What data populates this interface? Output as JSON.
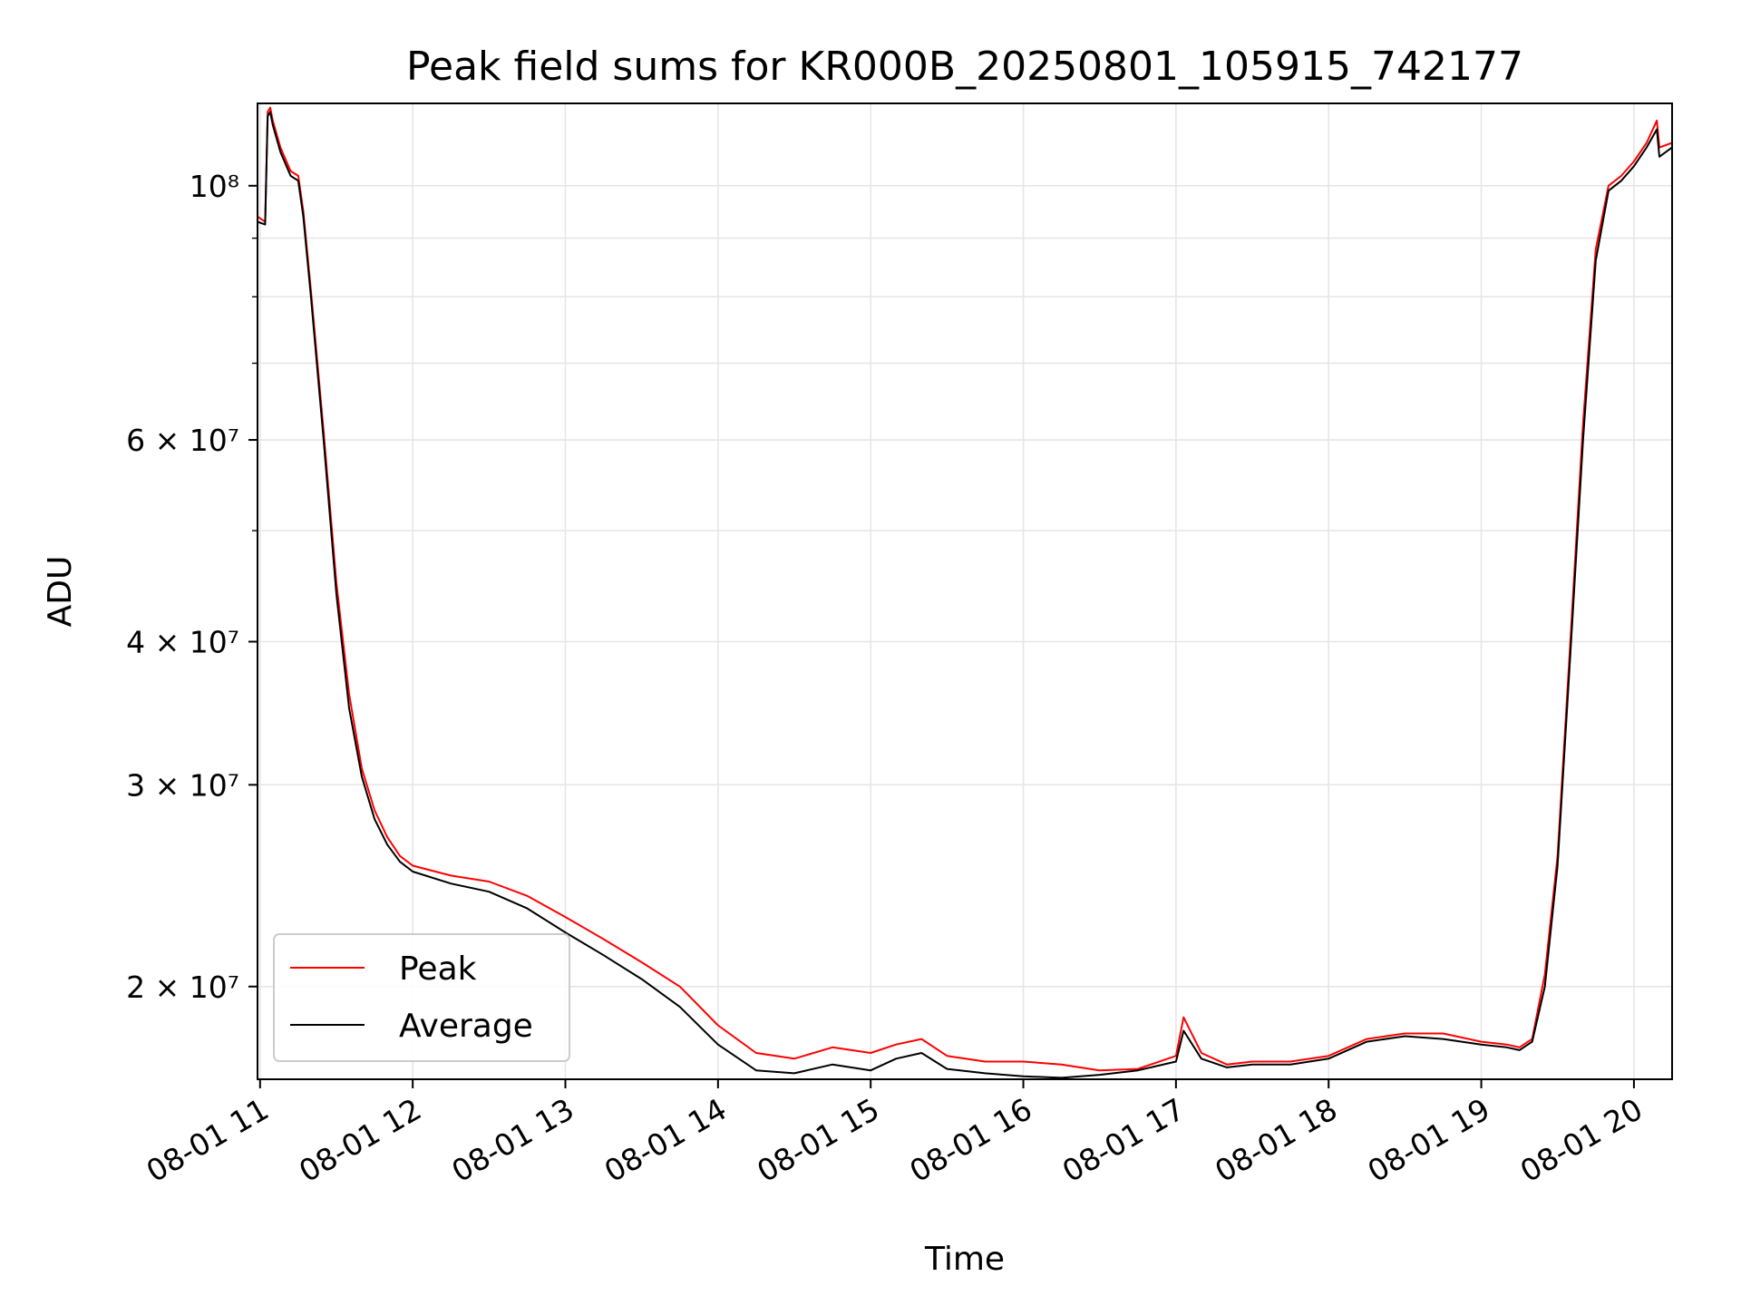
{
  "chart_data": {
    "type": "line",
    "title": "Peak field sums for KR000B_20250801_105915_742177",
    "xlabel": "Time",
    "ylabel": "ADU",
    "y_scale": "log",
    "ylim": [
      16600000,
      118000000
    ],
    "xlim": [
      "08-01 10:59",
      "08-01 20:15"
    ],
    "grid": true,
    "legend_position": "lower left",
    "x_ticks": [
      "08-01 11",
      "08-01 12",
      "08-01 13",
      "08-01 14",
      "08-01 15",
      "08-01 16",
      "08-01 17",
      "08-01 18",
      "08-01 19",
      "08-01 20"
    ],
    "y_ticks": [
      {
        "value": 20000000,
        "label": "2 × 10⁷"
      },
      {
        "value": 30000000,
        "label": "3 × 10⁷"
      },
      {
        "value": 40000000,
        "label": "4 × 10⁷"
      },
      {
        "value": 60000000,
        "label": "6 × 10⁷"
      },
      {
        "value": 100000000,
        "label": "10⁸"
      }
    ],
    "series": [
      {
        "name": "Peak",
        "color": "#ff0000",
        "x": [
          "08-01 10:59",
          "08-01 11:02",
          "08-01 11:03",
          "08-01 11:04",
          "08-01 11:05",
          "08-01 11:08",
          "08-01 11:12",
          "08-01 11:15",
          "08-01 11:17",
          "08-01 11:20",
          "08-01 11:25",
          "08-01 11:30",
          "08-01 11:35",
          "08-01 11:40",
          "08-01 11:45",
          "08-01 11:50",
          "08-01 11:55",
          "08-01 12:00",
          "08-01 12:15",
          "08-01 12:30",
          "08-01 12:45",
          "08-01 13:00",
          "08-01 13:15",
          "08-01 13:30",
          "08-01 13:45",
          "08-01 14:00",
          "08-01 14:15",
          "08-01 14:30",
          "08-01 14:45",
          "08-01 15:00",
          "08-01 15:10",
          "08-01 15:20",
          "08-01 15:30",
          "08-01 15:45",
          "08-01 16:00",
          "08-01 16:15",
          "08-01 16:30",
          "08-01 16:45",
          "08-01 17:00",
          "08-01 17:03",
          "08-01 17:10",
          "08-01 17:20",
          "08-01 17:30",
          "08-01 17:45",
          "08-01 18:00",
          "08-01 18:15",
          "08-01 18:30",
          "08-01 18:45",
          "08-01 19:00",
          "08-01 19:10",
          "08-01 19:15",
          "08-01 19:20",
          "08-01 19:25",
          "08-01 19:30",
          "08-01 19:35",
          "08-01 19:40",
          "08-01 19:45",
          "08-01 19:50",
          "08-01 19:55",
          "08-01 20:00",
          "08-01 20:05",
          "08-01 20:09",
          "08-01 20:10",
          "08-01 20:15"
        ],
        "values": [
          94000000,
          93000000,
          116000000,
          117000000,
          114000000,
          108000000,
          103000000,
          102000000,
          95000000,
          81000000,
          61000000,
          45000000,
          36000000,
          31000000,
          28500000,
          27000000,
          26000000,
          25500000,
          25000000,
          24700000,
          24000000,
          23000000,
          22000000,
          21000000,
          20000000,
          18500000,
          17500000,
          17300000,
          17700000,
          17500000,
          17800000,
          18000000,
          17400000,
          17200000,
          17200000,
          17100000,
          16900000,
          16950000,
          17400000,
          18800000,
          17500000,
          17100000,
          17200000,
          17200000,
          17400000,
          18000000,
          18200000,
          18200000,
          17900000,
          17800000,
          17700000,
          18000000,
          20500000,
          26000000,
          40000000,
          62000000,
          88000000,
          100000000,
          102000000,
          105000000,
          109000000,
          114000000,
          108000000,
          109000000
        ]
      },
      {
        "name": "Average",
        "color": "#000000",
        "x": [
          "08-01 10:59",
          "08-01 11:02",
          "08-01 11:03",
          "08-01 11:04",
          "08-01 11:05",
          "08-01 11:08",
          "08-01 11:12",
          "08-01 11:15",
          "08-01 11:17",
          "08-01 11:20",
          "08-01 11:25",
          "08-01 11:30",
          "08-01 11:35",
          "08-01 11:40",
          "08-01 11:45",
          "08-01 11:50",
          "08-01 11:55",
          "08-01 12:00",
          "08-01 12:15",
          "08-01 12:30",
          "08-01 12:45",
          "08-01 13:00",
          "08-01 13:15",
          "08-01 13:30",
          "08-01 13:45",
          "08-01 14:00",
          "08-01 14:15",
          "08-01 14:30",
          "08-01 14:45",
          "08-01 15:00",
          "08-01 15:10",
          "08-01 15:20",
          "08-01 15:30",
          "08-01 15:45",
          "08-01 16:00",
          "08-01 16:15",
          "08-01 16:30",
          "08-01 16:45",
          "08-01 17:00",
          "08-01 17:03",
          "08-01 17:10",
          "08-01 17:20",
          "08-01 17:30",
          "08-01 17:45",
          "08-01 18:00",
          "08-01 18:15",
          "08-01 18:30",
          "08-01 18:45",
          "08-01 19:00",
          "08-01 19:10",
          "08-01 19:15",
          "08-01 19:20",
          "08-01 19:25",
          "08-01 19:30",
          "08-01 19:35",
          "08-01 19:40",
          "08-01 19:45",
          "08-01 19:50",
          "08-01 19:55",
          "08-01 20:00",
          "08-01 20:05",
          "08-01 20:09",
          "08-01 20:10",
          "08-01 20:15"
        ],
        "values": [
          93000000,
          92500000,
          115000000,
          116000000,
          113000000,
          107000000,
          102000000,
          101000000,
          94000000,
          80000000,
          60000000,
          44000000,
          35000000,
          30500000,
          28000000,
          26600000,
          25700000,
          25200000,
          24600000,
          24200000,
          23400000,
          22300000,
          21300000,
          20300000,
          19200000,
          17800000,
          16900000,
          16800000,
          17100000,
          16900000,
          17300000,
          17500000,
          16950000,
          16800000,
          16700000,
          16650000,
          16750000,
          16900000,
          17200000,
          18300000,
          17300000,
          17000000,
          17100000,
          17100000,
          17300000,
          17900000,
          18100000,
          18000000,
          17800000,
          17700000,
          17600000,
          17900000,
          20000000,
          25500000,
          39000000,
          60000000,
          86000000,
          99000000,
          101000000,
          104000000,
          108000000,
          112000000,
          106000000,
          108000000
        ]
      }
    ]
  }
}
